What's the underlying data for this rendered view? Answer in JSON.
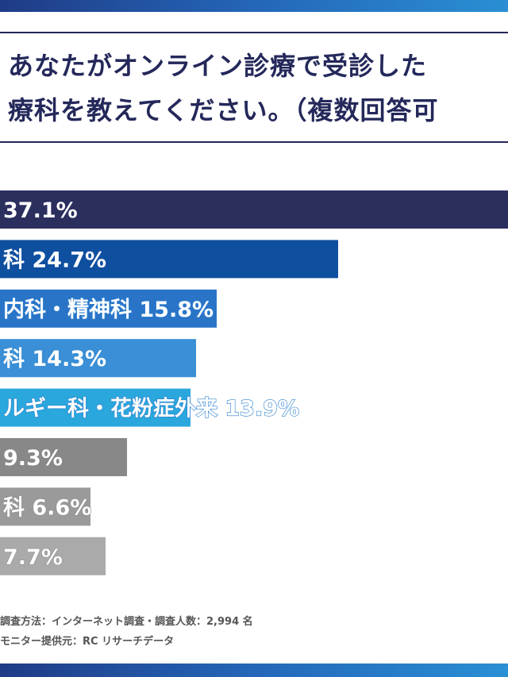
{
  "colors": {
    "title": "#24285a",
    "bars": [
      "#2b2f5e",
      "#0f4fa0",
      "#2a74c7",
      "#3a8fd6",
      "#2aa7dc",
      "#888888",
      "#9a9a9a",
      "#aaaaaa"
    ],
    "text_dark": "#2b2f5e",
    "text_blue": "#2a7fd0",
    "text_gray": "#8a8a8a"
  },
  "header": {
    "title_line1": "あなたがオンライン診療で受診した",
    "title_line2": "療科を教えてください。（複数回答可"
  },
  "chart_data": {
    "type": "bar",
    "orientation": "horizontal",
    "title": "あなたがオンライン診療で受診した療科を教えてください。（複数回答可",
    "unit": "%",
    "xlim": [
      0,
      37.1
    ],
    "visible_labels": [
      "37.1%",
      "科  24.7%",
      "内科・精神科  15.8%",
      "科  14.3%",
      "ルギー科・花粉症外来  13.9%",
      "9.3%",
      "科 6.6%",
      "7.7%"
    ],
    "categories": [
      "",
      "科",
      "内科・精神科",
      "科",
      "ルギー科・花粉症外来",
      "",
      "科",
      ""
    ],
    "values": [
      37.1,
      24.7,
      15.8,
      14.3,
      13.9,
      9.3,
      6.6,
      7.7
    ]
  },
  "footer": {
    "note1": "調査方法：インターネット調査・調査人数：2,994 名",
    "note2": "モニター提供元：RC リサーチデータ"
  }
}
